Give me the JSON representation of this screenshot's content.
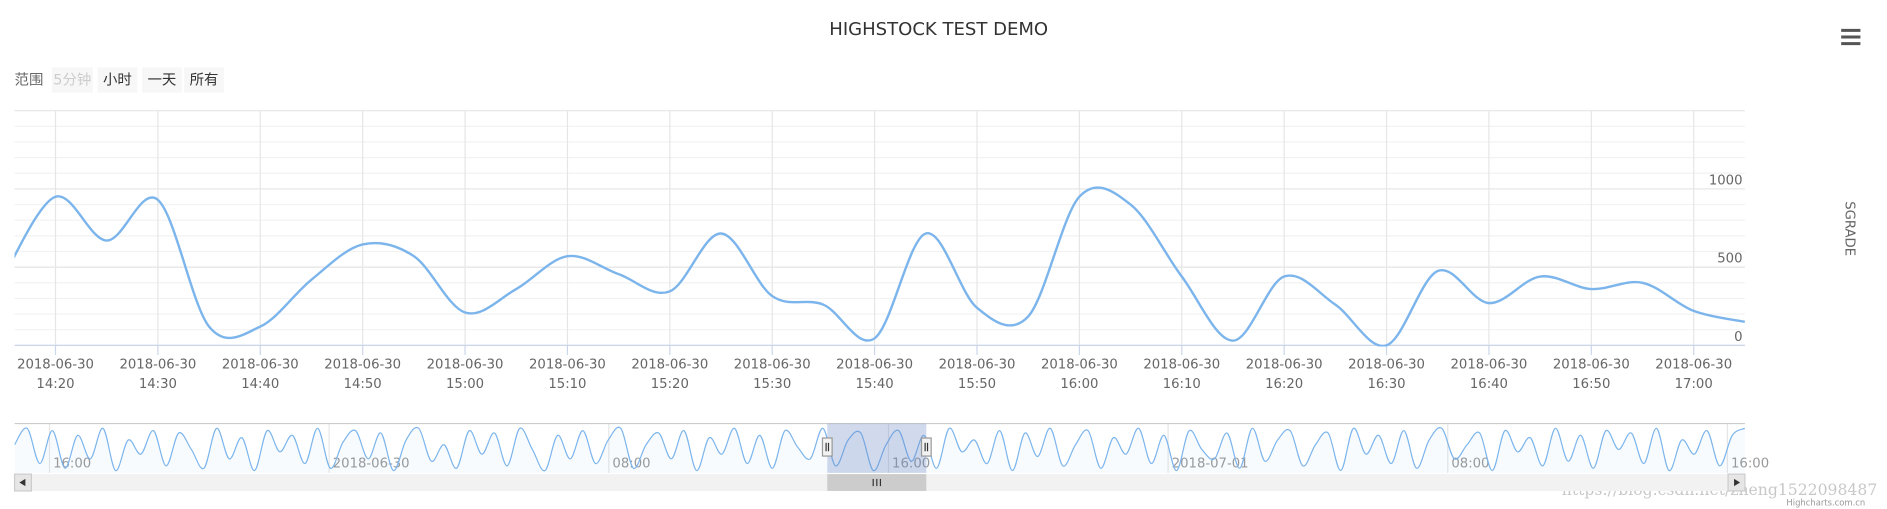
{
  "chart_data": {
    "type": "line",
    "title": "HIGHSTOCK TEST DEMO",
    "y_axis_label": "SGRADE",
    "range_selector": {
      "label": "范围",
      "buttons": [
        "5分钟",
        "小时",
        "一天",
        "所有"
      ],
      "disabled": [
        true,
        false,
        false,
        false
      ]
    },
    "x": [
      "2018-06-30 14:15",
      "2018-06-30 14:20",
      "2018-06-30 14:25",
      "2018-06-30 14:30",
      "2018-06-30 14:35",
      "2018-06-30 14:40",
      "2018-06-30 14:45",
      "2018-06-30 14:50",
      "2018-06-30 14:55",
      "2018-06-30 15:00",
      "2018-06-30 15:05",
      "2018-06-30 15:10",
      "2018-06-30 15:15",
      "2018-06-30 15:20",
      "2018-06-30 15:25",
      "2018-06-30 15:30",
      "2018-06-30 15:35",
      "2018-06-30 15:40",
      "2018-06-30 15:45",
      "2018-06-30 15:50",
      "2018-06-30 15:55",
      "2018-06-30 16:00",
      "2018-06-30 16:05",
      "2018-06-30 16:10",
      "2018-06-30 16:15",
      "2018-06-30 16:20",
      "2018-06-30 16:25",
      "2018-06-30 16:30",
      "2018-06-30 16:35",
      "2018-06-30 16:40",
      "2018-06-30 16:45",
      "2018-06-30 16:50",
      "2018-06-30 16:55",
      "2018-06-30 17:00",
      "2018-06-30 17:05"
    ],
    "series": [
      {
        "color": "#7cb5ec",
        "values": [
          450,
          950,
          670,
          930,
          120,
          120,
          420,
          645,
          570,
          210,
          360,
          570,
          455,
          345,
          715,
          315,
          260,
          45,
          715,
          240,
          185,
          950,
          900,
          440,
          30,
          440,
          260,
          0,
          475,
          270,
          440,
          360,
          400,
          220,
          150
        ]
      }
    ],
    "xlim": [
      "2018-06-30 14:16",
      "2018-06-30 17:05"
    ],
    "xticks": [
      "2018-06-30 14:20",
      "2018-06-30 14:30",
      "2018-06-30 14:40",
      "2018-06-30 14:50",
      "2018-06-30 15:00",
      "2018-06-30 15:10",
      "2018-06-30 15:20",
      "2018-06-30 15:30",
      "2018-06-30 15:40",
      "2018-06-30 15:50",
      "2018-06-30 16:00",
      "2018-06-30 16:10",
      "2018-06-30 16:20",
      "2018-06-30 16:30",
      "2018-06-30 16:40",
      "2018-06-30 16:50",
      "2018-06-30 17:00"
    ],
    "ylim": [
      0,
      1500
    ],
    "yticks": [
      0,
      500,
      1000
    ],
    "grid": true,
    "minor_grid": true,
    "navigator": {
      "xlim": [
        "2018-06-29 15:00",
        "2018-07-01 16:30"
      ],
      "xticks": [
        {
          "value": "2018-06-29 16:00",
          "label": "16:00"
        },
        {
          "value": "2018-06-30 00:00",
          "label": "2018-06-30"
        },
        {
          "value": "2018-06-30 08:00",
          "label": "08:00"
        },
        {
          "value": "2018-06-30 16:00",
          "label": "16:00"
        },
        {
          "value": "2018-07-01 00:00",
          "label": "2018-07-01"
        },
        {
          "value": "2018-07-01 08:00",
          "label": "08:00"
        },
        {
          "value": "2018-07-01 16:00",
          "label": "16:00"
        }
      ],
      "ylim": [
        0,
        1000
      ],
      "range": [
        "2018-06-30 14:15",
        "2018-06-30 17:05"
      ],
      "values": [
        600,
        950,
        200,
        900,
        100,
        800,
        300,
        950,
        50,
        700,
        400,
        900,
        150,
        850,
        500,
        100,
        950,
        300,
        750,
        50,
        900,
        450,
        800,
        200,
        950,
        100,
        650,
        900,
        300,
        850,
        50,
        700,
        950,
        250,
        600,
        100,
        900,
        400,
        850,
        150,
        950,
        500,
        50,
        800,
        300,
        900,
        200,
        700,
        950,
        100,
        600,
        850,
        300,
        900,
        50,
        750,
        400,
        950,
        200,
        800,
        100,
        900,
        550,
        300,
        950,
        150,
        700,
        850,
        50,
        600,
        900,
        250,
        800,
        100,
        950,
        450,
        700,
        200,
        900,
        50,
        850,
        350,
        950,
        150,
        600,
        900,
        100,
        750,
        400,
        950,
        200,
        800,
        50,
        900,
        500,
        300,
        850,
        100,
        950,
        250,
        700,
        900,
        150,
        600,
        850,
        50,
        950,
        400,
        800,
        200,
        900,
        100,
        700,
        950,
        300,
        600,
        850,
        50,
        900,
        450,
        750,
        150,
        950,
        250,
        800,
        100,
        900,
        500,
        850,
        200,
        950,
        50,
        700,
        400,
        900,
        150,
        800,
        950
      ]
    },
    "watermark": "https://blog.csdn.net/zheng1522098487",
    "credits": "Highcharts.com.cn"
  }
}
